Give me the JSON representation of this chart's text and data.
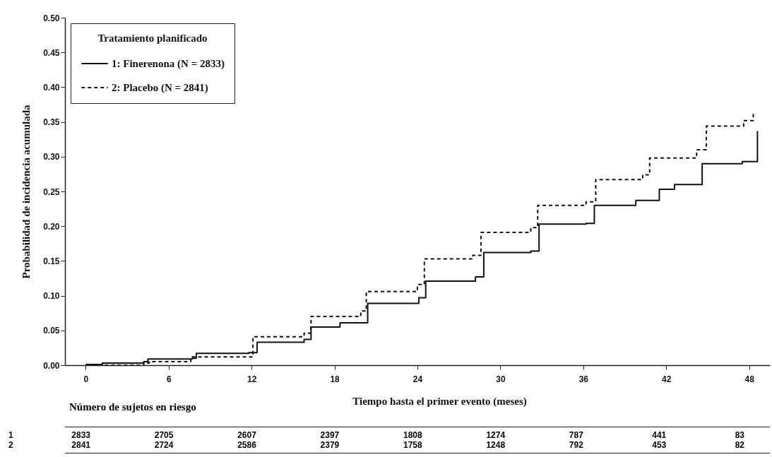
{
  "chart_data": {
    "type": "step",
    "xlabel": "Tiempo hasta el primer evento (meses)",
    "ylabel": "Probabilidad de incidencia acumulada",
    "legend_title": "Tratamiento planificado",
    "legend": "top left",
    "grid": false,
    "xlim": [
      -1.5,
      49.5
    ],
    "xticks": [
      0,
      6,
      12,
      18,
      24,
      30,
      36,
      42,
      48
    ],
    "ylim": [
      0,
      0.5
    ],
    "yticks": [
      {
        "value": 0,
        "label": "0.00"
      },
      {
        "value": 0.05,
        "label": "0.05"
      },
      {
        "value": 0.1,
        "label": "0.10"
      },
      {
        "value": 0.15,
        "label": "0.15"
      },
      {
        "value": 0.2,
        "label": "0.20"
      },
      {
        "value": 0.25,
        "label": "0.25"
      },
      {
        "value": 0.3,
        "label": "0.30"
      },
      {
        "value": 0.35,
        "label": "0.35"
      },
      {
        "value": 0.4,
        "label": "0.40"
      },
      {
        "value": 0.45,
        "label": "0.45"
      },
      {
        "value": 0.5,
        "label": "0.50"
      }
    ],
    "series": [
      {
        "name": "1: Finerenona (N = 2833)",
        "color": "#111111",
        "line_style": "solid",
        "x": [
          0,
          1.2,
          4.2,
          4.5,
          7.7,
          8.0,
          11.8,
          12.4,
          15.8,
          16.3,
          18.4,
          20.4,
          24.1,
          24.6,
          28.2,
          28.8,
          32.2,
          32.8,
          36.2,
          36.8,
          39.8,
          41.5,
          42.6,
          44.6,
          47.5,
          48.6
        ],
        "values": [
          0.001,
          0.003,
          0.005,
          0.009,
          0.01,
          0.017,
          0.018,
          0.033,
          0.037,
          0.055,
          0.061,
          0.089,
          0.097,
          0.121,
          0.127,
          0.162,
          0.164,
          0.203,
          0.204,
          0.23,
          0.237,
          0.253,
          0.26,
          0.29,
          0.293,
          0.337
        ]
      },
      {
        "name": "2: Placebo (N = 2841)",
        "color": "#111111",
        "line_style": "dashed",
        "x": [
          0,
          4.2,
          4.6,
          7.6,
          12.1,
          15.8,
          16.3,
          19.9,
          20.3,
          24.0,
          24.5,
          28.0,
          28.6,
          32.2,
          32.7,
          36.2,
          36.9,
          40.3,
          40.8,
          44.2,
          44.9,
          47.6,
          48.3
        ],
        "values": [
          0,
          0.003,
          0.005,
          0.012,
          0.041,
          0.046,
          0.07,
          0.078,
          0.106,
          0.116,
          0.153,
          0.158,
          0.191,
          0.198,
          0.23,
          0.235,
          0.267,
          0.274,
          0.298,
          0.31,
          0.344,
          0.352,
          0.364
        ]
      }
    ],
    "annotations": [
      "Número de sujetos en riesgo",
      "1",
      "2833",
      "2705",
      "2607",
      "2397",
      "1808",
      "1274",
      "787",
      "441",
      "83",
      "2",
      "2841",
      "2724",
      "2586",
      "2379",
      "1758",
      "1248",
      "792",
      "453",
      "82"
    ]
  }
}
